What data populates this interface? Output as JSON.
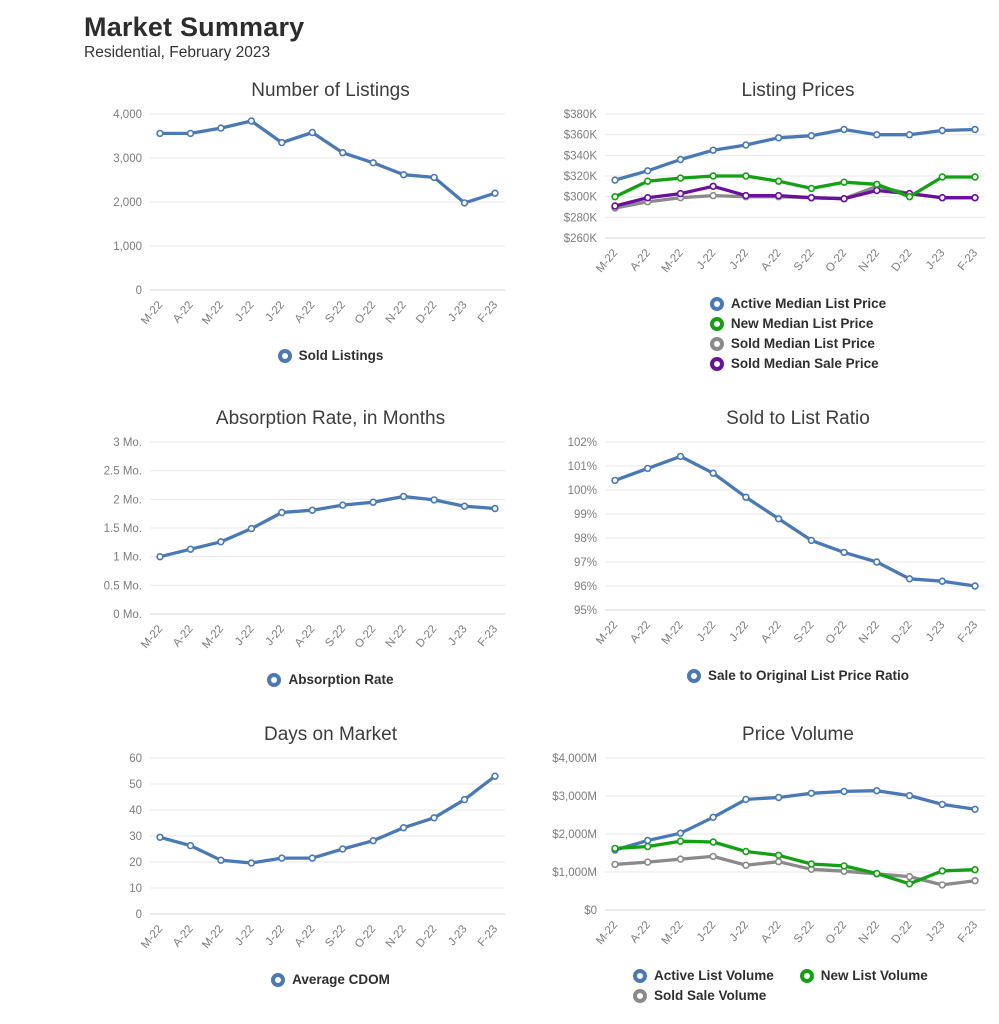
{
  "header": {
    "title": "Market Summary",
    "subtitle": "Residential, February 2023"
  },
  "colors": {
    "blue": "#4a79b8",
    "green": "#12a112",
    "gray": "#8a8a8a",
    "purple": "#6b0f9e",
    "grid": "#e7e7e7",
    "axis": "#d4d4d4",
    "tick_text": "#7d7d7d"
  },
  "chart_data": [
    {
      "id": "number-of-listings",
      "type": "line",
      "title": "Number of Listings",
      "categories": [
        "M-22",
        "A-22",
        "M-22",
        "J-22",
        "J-22",
        "A-22",
        "S-22",
        "O-22",
        "N-22",
        "D-22",
        "J-23",
        "F-23"
      ],
      "ylim": [
        0,
        4000
      ],
      "y_ticks": [
        {
          "v": 0,
          "label": "0"
        },
        {
          "v": 1000,
          "label": "1,000"
        },
        {
          "v": 2000,
          "label": "2,000"
        },
        {
          "v": 3000,
          "label": "3,000"
        },
        {
          "v": 4000,
          "label": "4,000"
        }
      ],
      "series": [
        {
          "name": "Sold Listings",
          "color": "blue",
          "values": [
            3560,
            3560,
            3680,
            3840,
            3350,
            3580,
            3120,
            2890,
            2620,
            2560,
            1980,
            2200
          ]
        }
      ],
      "draw_order": [
        0
      ],
      "legend": [
        {
          "label": "Sold Listings",
          "color": "blue"
        }
      ]
    },
    {
      "id": "listing-prices",
      "type": "line",
      "title": "Listing Prices",
      "categories": [
        "M-22",
        "A-22",
        "M-22",
        "J-22",
        "J-22",
        "A-22",
        "S-22",
        "O-22",
        "N-22",
        "D-22",
        "J-23",
        "F-23"
      ],
      "ylim": [
        260,
        380
      ],
      "unit": "$K",
      "y_ticks": [
        {
          "v": 260,
          "label": "$260K"
        },
        {
          "v": 280,
          "label": "$280K"
        },
        {
          "v": 300,
          "label": "$300K"
        },
        {
          "v": 320,
          "label": "$320K"
        },
        {
          "v": 340,
          "label": "$340K"
        },
        {
          "v": 360,
          "label": "$360K"
        },
        {
          "v": 380,
          "label": "$380K"
        }
      ],
      "series": [
        {
          "name": "Active Median List Price",
          "color": "blue",
          "values": [
            316,
            325,
            336,
            345,
            350,
            357,
            359,
            365,
            360,
            360,
            364,
            365
          ]
        },
        {
          "name": "New Median List Price",
          "color": "green",
          "values": [
            300,
            315,
            318,
            320,
            320,
            315,
            308,
            314,
            312,
            300,
            319,
            319
          ]
        },
        {
          "name": "Sold Median List Price",
          "color": "gray",
          "values": [
            289,
            295,
            299,
            301,
            300,
            300,
            299,
            298,
            310,
            303,
            299,
            299
          ]
        },
        {
          "name": "Sold Median Sale Price",
          "color": "purple",
          "values": [
            291,
            299,
            303,
            310,
            301,
            301,
            299,
            298,
            306,
            303,
            299,
            299
          ]
        }
      ],
      "draw_order": [
        0,
        2,
        3,
        1
      ],
      "legend": [
        {
          "label": "Active Median List Price",
          "color": "blue"
        },
        {
          "label": "New Median List Price",
          "color": "green"
        },
        {
          "label": "Sold Median List Price",
          "color": "gray"
        },
        {
          "label": "Sold Median Sale Price",
          "color": "purple"
        }
      ]
    },
    {
      "id": "absorption-rate",
      "type": "line",
      "title": "Absorption Rate, in Months",
      "categories": [
        "M-22",
        "A-22",
        "M-22",
        "J-22",
        "J-22",
        "A-22",
        "S-22",
        "O-22",
        "N-22",
        "D-22",
        "J-23",
        "F-23"
      ],
      "ylim": [
        0,
        3
      ],
      "y_ticks": [
        {
          "v": 0,
          "label": "0 Mo."
        },
        {
          "v": 0.5,
          "label": "0.5 Mo."
        },
        {
          "v": 1,
          "label": "1 Mo."
        },
        {
          "v": 1.5,
          "label": "1.5 Mo."
        },
        {
          "v": 2,
          "label": "2 Mo."
        },
        {
          "v": 2.5,
          "label": "2.5 Mo."
        },
        {
          "v": 3,
          "label": "3 Mo."
        }
      ],
      "series": [
        {
          "name": "Absorption Rate",
          "color": "blue",
          "values": [
            1.0,
            1.13,
            1.26,
            1.49,
            1.77,
            1.81,
            1.9,
            1.95,
            2.05,
            1.99,
            1.88,
            1.84
          ]
        }
      ],
      "draw_order": [
        0
      ],
      "legend": [
        {
          "label": "Absorption Rate",
          "color": "blue"
        }
      ]
    },
    {
      "id": "sold-to-list-ratio",
      "type": "line",
      "title": "Sold to List Ratio",
      "categories": [
        "M-22",
        "A-22",
        "M-22",
        "J-22",
        "J-22",
        "A-22",
        "S-22",
        "O-22",
        "N-22",
        "D-22",
        "J-23",
        "F-23"
      ],
      "ylim": [
        95,
        102
      ],
      "y_ticks": [
        {
          "v": 95,
          "label": "95%"
        },
        {
          "v": 96,
          "label": "96%"
        },
        {
          "v": 97,
          "label": "97%"
        },
        {
          "v": 98,
          "label": "98%"
        },
        {
          "v": 99,
          "label": "99%"
        },
        {
          "v": 100,
          "label": "100%"
        },
        {
          "v": 101,
          "label": "101%"
        },
        {
          "v": 102,
          "label": "102%"
        }
      ],
      "series": [
        {
          "name": "Sale to Original List Price Ratio",
          "color": "blue",
          "values": [
            100.4,
            100.9,
            101.4,
            100.7,
            99.7,
            98.8,
            97.9,
            97.4,
            97.0,
            96.3,
            96.2,
            96.0
          ]
        }
      ],
      "draw_order": [
        0
      ],
      "legend": [
        {
          "label": "Sale to Original List Price Ratio",
          "color": "blue"
        }
      ]
    },
    {
      "id": "days-on-market",
      "type": "line",
      "title": "Days on Market",
      "categories": [
        "M-22",
        "A-22",
        "M-22",
        "J-22",
        "J-22",
        "A-22",
        "S-22",
        "O-22",
        "N-22",
        "D-22",
        "J-23",
        "F-23"
      ],
      "ylim": [
        0,
        60
      ],
      "y_ticks": [
        {
          "v": 0,
          "label": "0"
        },
        {
          "v": 10,
          "label": "10"
        },
        {
          "v": 20,
          "label": "20"
        },
        {
          "v": 30,
          "label": "30"
        },
        {
          "v": 40,
          "label": "40"
        },
        {
          "v": 50,
          "label": "50"
        },
        {
          "v": 60,
          "label": "60"
        }
      ],
      "series": [
        {
          "name": "Average CDOM",
          "color": "blue",
          "values": [
            29.5,
            26.3,
            20.7,
            19.6,
            21.5,
            21.5,
            25.0,
            28.2,
            33.2,
            37.0,
            44.0,
            53.0
          ]
        }
      ],
      "draw_order": [
        0
      ],
      "legend": [
        {
          "label": "Average CDOM",
          "color": "blue"
        }
      ]
    },
    {
      "id": "price-volume",
      "type": "line",
      "title": "Price Volume",
      "categories": [
        "M-22",
        "A-22",
        "M-22",
        "J-22",
        "J-22",
        "A-22",
        "S-22",
        "O-22",
        "N-22",
        "D-22",
        "J-23",
        "F-23"
      ],
      "ylim": [
        0,
        4000
      ],
      "unit": "$M",
      "y_ticks": [
        {
          "v": 0,
          "label": "$0"
        },
        {
          "v": 1000,
          "label": "$1,000M"
        },
        {
          "v": 2000,
          "label": "$2,000M"
        },
        {
          "v": 3000,
          "label": "$3,000M"
        },
        {
          "v": 4000,
          "label": "$4,000M"
        }
      ],
      "series": [
        {
          "name": "Active List Volume",
          "color": "blue",
          "values": [
            1580,
            1830,
            2020,
            2440,
            2910,
            2960,
            3070,
            3120,
            3140,
            3010,
            2780,
            2650
          ]
        },
        {
          "name": "New List Volume",
          "color": "green",
          "values": [
            1620,
            1670,
            1810,
            1790,
            1540,
            1440,
            1210,
            1160,
            960,
            690,
            1030,
            1060
          ]
        },
        {
          "name": "Sold Sale Volume",
          "color": "gray",
          "values": [
            1200,
            1260,
            1340,
            1410,
            1180,
            1270,
            1070,
            1020,
            950,
            880,
            660,
            770
          ]
        }
      ],
      "draw_order": [
        0,
        2,
        1
      ],
      "legend": [
        {
          "label": "Active List Volume",
          "color": "blue"
        },
        {
          "label": "New List Volume",
          "color": "green"
        },
        {
          "label": "Sold Sale Volume",
          "color": "gray"
        }
      ]
    }
  ]
}
